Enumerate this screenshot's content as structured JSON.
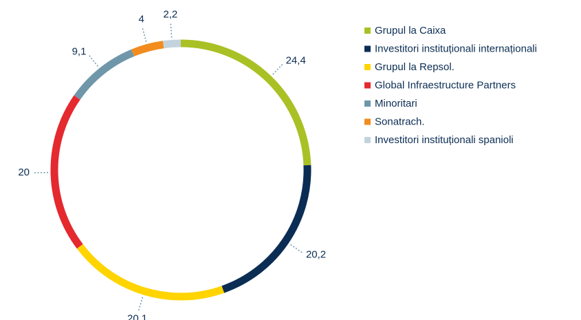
{
  "chart_data": {
    "type": "pie",
    "donut": true,
    "categories": [
      "Grupul la Caixa",
      "Investitori instituționali internaționali",
      "Grupul la Repsol.",
      "Global Infraestructure Partners",
      "Minoritari",
      "Sonatrach.",
      "Investitori instituționali spanioli"
    ],
    "values": [
      24.4,
      20.2,
      20.1,
      20,
      9.1,
      4,
      2.2
    ],
    "value_labels": [
      "24,4",
      "20,2",
      "20,1",
      "20",
      "9,1",
      "4",
      "2,2"
    ],
    "colors": [
      "#a9c124",
      "#0b2d54",
      "#ffd400",
      "#e4292f",
      "#6f97a9",
      "#f28c1e",
      "#c3d3dd"
    ],
    "legend": "right"
  }
}
